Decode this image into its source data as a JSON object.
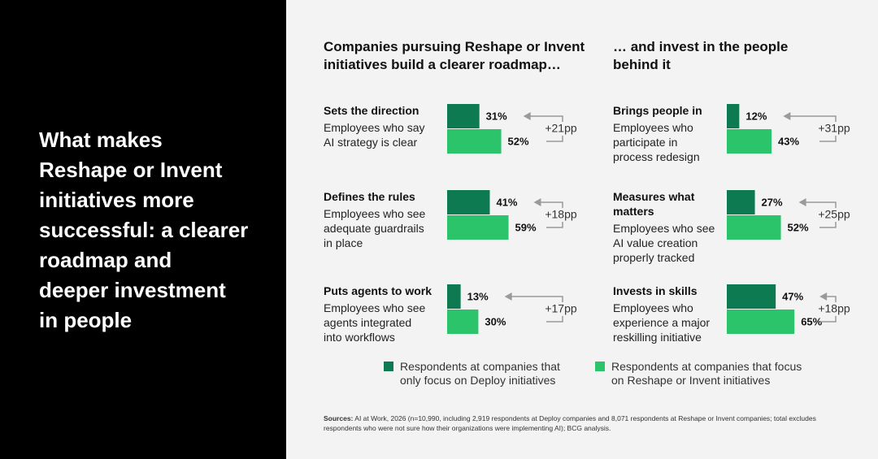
{
  "heading": [
    "What makes",
    "Reshape or Invent",
    "initiatives more",
    "successful: a clearer",
    "roadmap and",
    "deeper investment",
    "in people"
  ],
  "column_titles": [
    [
      "Companies pursuing Reshape or Invent",
      "initiatives build a clearer roadmap…"
    ],
    [
      "… and invest in the people",
      "behind it"
    ]
  ],
  "legend": [
    {
      "name": [
        "Respondents at companies that",
        "only focus on Deploy initiatives"
      ],
      "color": "#0e7a52"
    },
    {
      "name": [
        "Respondents at companies that focus",
        "on Reshape or Invent initiatives"
      ],
      "color": "#2bc46b"
    }
  ],
  "sources": {
    "label": "Sources:",
    "text": "AI at Work, 2026 (n=10,990, including 2,919 respondents at Deploy companies and 8,071 respondents at Reshape or Invent companies; total excludes respondents who were not sure how their organizations were implementing AI); BCG analysis."
  },
  "chart_data": [
    {
      "type": "bar",
      "title": [
        "Sets the direction"
      ],
      "subtitle": [
        "Employees who say",
        "AI strategy is clear"
      ],
      "values": [
        31,
        52
      ],
      "value_labels": [
        "31%",
        "52%"
      ],
      "annotation": "+21pp",
      "xlim": [
        0,
        100
      ]
    },
    {
      "type": "bar",
      "title": [
        "Defines the rules"
      ],
      "subtitle": [
        "Employees who see",
        "adequate guardrails",
        "in place"
      ],
      "values": [
        41,
        59
      ],
      "value_labels": [
        "41%",
        "59%"
      ],
      "annotation": "+18pp",
      "xlim": [
        0,
        100
      ]
    },
    {
      "type": "bar",
      "title": [
        "Puts agents to work"
      ],
      "subtitle": [
        "Employees who see",
        "agents integrated",
        "into workflows"
      ],
      "values": [
        13,
        30
      ],
      "value_labels": [
        "13%",
        "30%"
      ],
      "annotation": "+17pp",
      "xlim": [
        0,
        100
      ]
    },
    {
      "type": "bar",
      "title": [
        "Brings people in"
      ],
      "subtitle": [
        "Employees who",
        "participate in",
        "process redesign"
      ],
      "values": [
        12,
        43
      ],
      "value_labels": [
        "12%",
        "43%"
      ],
      "annotation": "+31pp",
      "xlim": [
        0,
        100
      ]
    },
    {
      "type": "bar",
      "title": [
        "Measures what",
        "matters"
      ],
      "subtitle": [
        "Employees who see",
        "AI value creation",
        "properly tracked"
      ],
      "values": [
        27,
        52
      ],
      "value_labels": [
        "27%",
        "52%"
      ],
      "annotation": "+25pp",
      "xlim": [
        0,
        100
      ]
    },
    {
      "type": "bar",
      "title": [
        "Invests in skills"
      ],
      "subtitle": [
        "Employees who",
        "experience a major",
        "reskilling initiative"
      ],
      "values": [
        47,
        65
      ],
      "value_labels": [
        "47%",
        "65%"
      ],
      "annotation": "+18pp",
      "xlim": [
        0,
        100
      ]
    }
  ]
}
